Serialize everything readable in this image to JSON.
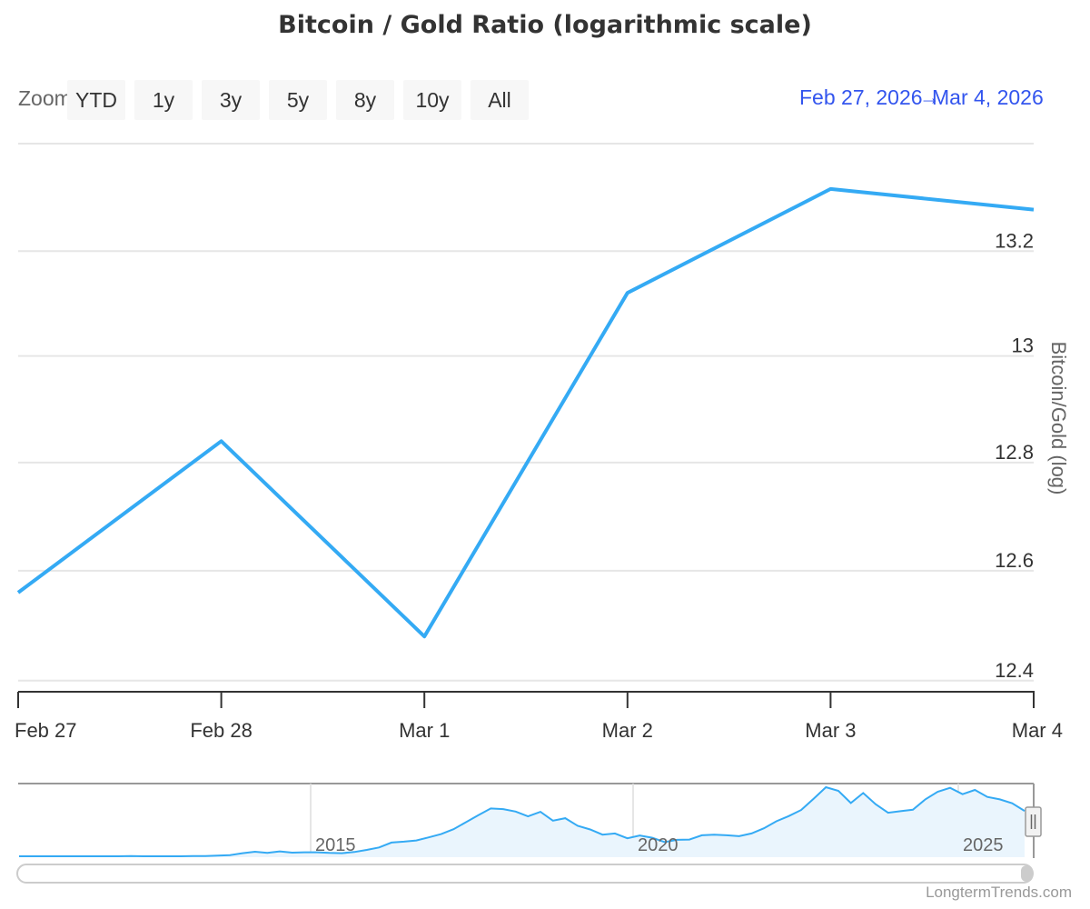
{
  "chart_data": {
    "type": "line",
    "title": "Bitcoin / Gold Ratio (logarithmic scale)",
    "ylabel": "Bitcoin/Gold (log)",
    "yscale": "log",
    "ylim": [
      12.38,
      13.41
    ],
    "yticks": [
      "12.4",
      "12.6",
      "12.8",
      "13",
      "13.2"
    ],
    "xticks": [
      "Feb 27",
      "Feb 28",
      "Mar 1",
      "Mar 2",
      "Mar 3",
      "Mar 4"
    ],
    "x": [
      "Feb 27",
      "Feb 28",
      "Mar 1",
      "Mar 2",
      "Mar 3",
      "Mar 4"
    ],
    "series": [
      {
        "values": [
          12.56,
          12.84,
          12.48,
          13.12,
          13.32,
          13.28
        ],
        "color": "#34aaf4"
      }
    ],
    "grid": true,
    "legend": "none"
  },
  "toolbar": {
    "zoom_label": "Zoom",
    "buttons": [
      "YTD",
      "1y",
      "3y",
      "5y",
      "8y",
      "10y",
      "All"
    ]
  },
  "range": {
    "from": "Feb 27, 2026",
    "separator": "→",
    "to": "Mar 4, 2026"
  },
  "navigator": {
    "year_labels": [
      "2015",
      "2020",
      "2025"
    ],
    "series": [
      0.3,
      0.3,
      0.3,
      0.3,
      0.3,
      0.3,
      0.3,
      0.3,
      0.3,
      0.35,
      0.3,
      0.3,
      0.3,
      0.3,
      0.35,
      0.4,
      0.5,
      0.7,
      1.3,
      1.8,
      1.4,
      1.9,
      1.5,
      1.6,
      1.6,
      1.4,
      1.3,
      1.7,
      2.4,
      3.2,
      4.8,
      5.1,
      5.5,
      6.5,
      7.6,
      9.2,
      11.5,
      13.8,
      16.0,
      15.8,
      15.0,
      13.4,
      14.9,
      12.0,
      12.8,
      10.3,
      9.1,
      7.4,
      7.8,
      6.2,
      7.1,
      6.4,
      5.0,
      5.7,
      5.8,
      7.2,
      7.4,
      7.2,
      6.9,
      7.8,
      9.5,
      11.8,
      13.5,
      15.5,
      19.2,
      23.0,
      21.8,
      17.8,
      21.1,
      17.4,
      14.6,
      15.1,
      15.6,
      19.0,
      21.5,
      22.8,
      20.7,
      22.1,
      19.8,
      19.0,
      17.7,
      15.2
    ],
    "colors": {
      "line": "#34aaf4",
      "fill": "#eaf5fd"
    }
  },
  "credit": "LongtermTrends.com",
  "colors": {
    "line": "#34aaf4",
    "grid": "#e6e6e6",
    "range": "#3355ee"
  }
}
